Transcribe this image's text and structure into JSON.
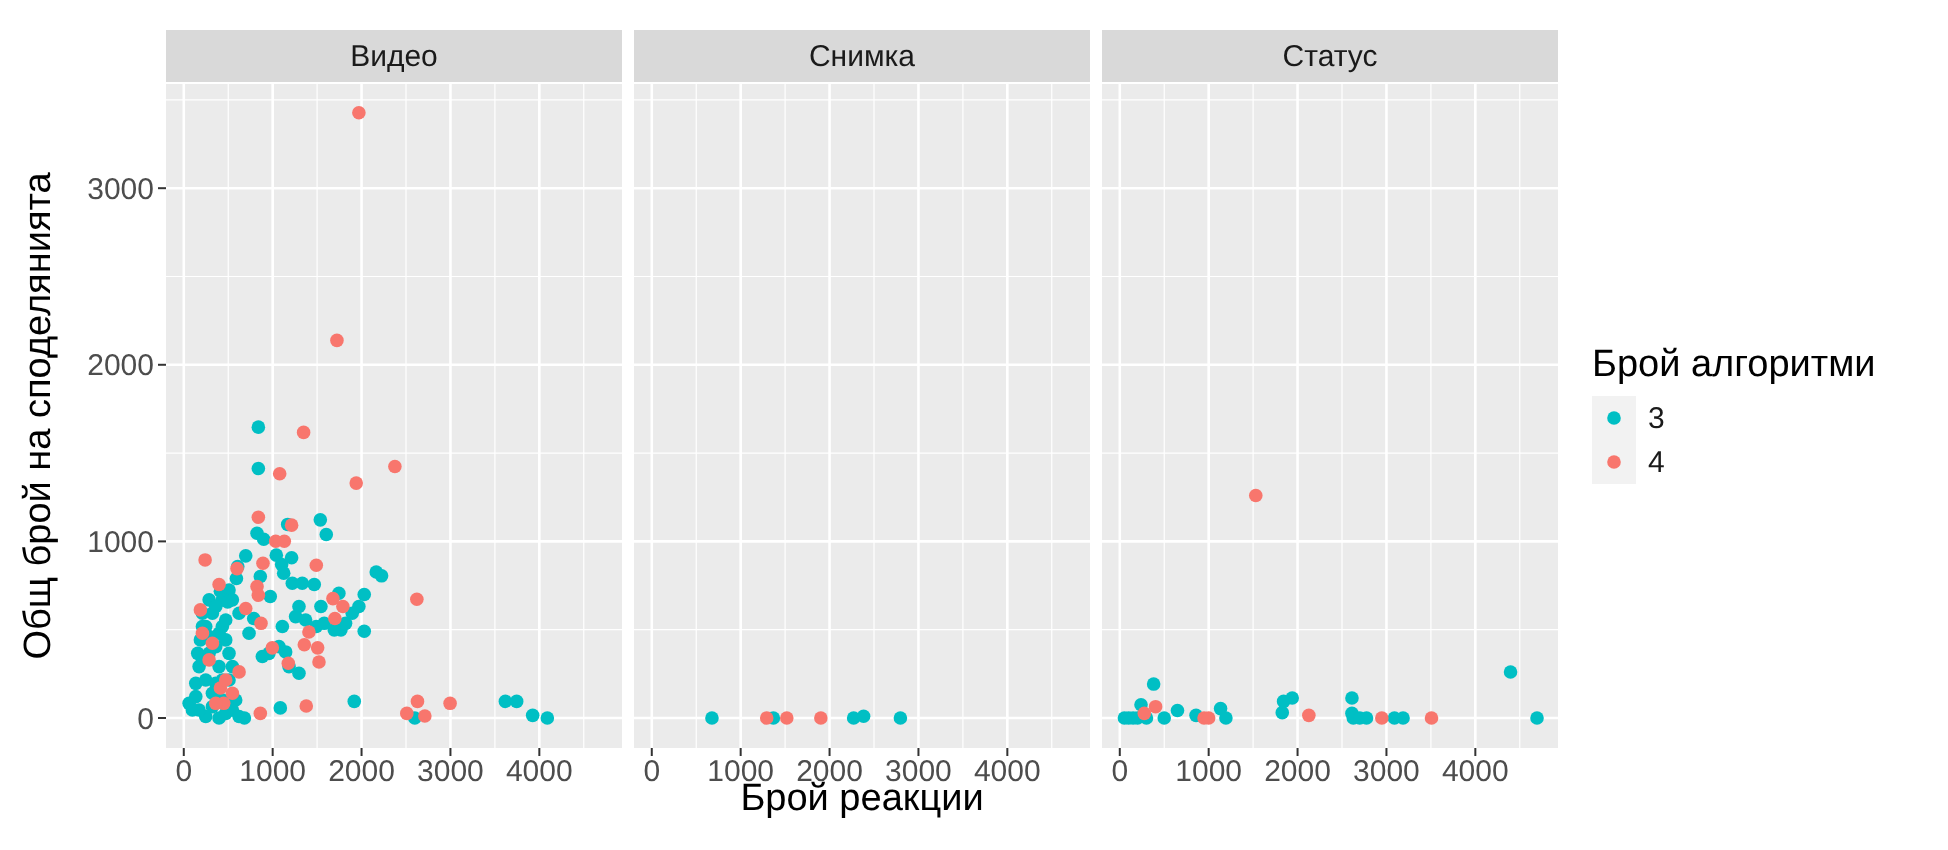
{
  "chart_data": [
    {
      "type": "scatter",
      "title": "Видео",
      "ylabel": "Общ брой на споделянията",
      "xlim": [
        -200,
        4930
      ],
      "xticks": [
        0,
        1000,
        2000,
        3000,
        4000
      ],
      "ylim": [
        -170,
        3590
      ],
      "yticks": [
        0,
        1000,
        2000,
        3000
      ],
      "grid": true,
      "marker": "circle",
      "legend": "right",
      "legend_title": "Брой алгоритми",
      "series": [
        {
          "name": "3",
          "color": "#00bfc4",
          "x": [
            839,
            839,
            1169,
            1536,
            1603,
            824,
            899,
            697,
            607,
            592,
            509,
            412,
            434,
            494,
            1041,
            1101,
            1213,
            1124,
            973,
            861,
            734,
            787,
            2165,
            2225,
            2030,
            1970,
            1895,
            1820,
            1768,
            1693,
            1580,
            1491,
            1371,
            1296,
            1221,
            1333,
            1468,
            1745,
            1543,
            1258,
            1109,
            1071,
            1184,
            1296,
            1146,
            958,
            884,
            2030,
            1918,
            1086,
            2599,
            3618,
            3745,
            3925,
            4090,
            682,
            397,
            60,
            135,
            172,
            157,
            187,
            247,
            322,
            210,
            285,
            360,
            434,
            472,
            509,
            547,
            509,
            584,
            472,
            247,
            97,
            135,
            247,
            322,
            397,
            285,
            360,
            210,
            434,
            547,
            622,
            172,
            322,
            210,
            397,
            472,
            547,
            622,
            285,
            434,
            360
          ],
          "values": [
            1647,
            1413,
            1096,
            1122,
            1039,
            1046,
            1012,
            918,
            858,
            790,
            725,
            718,
            669,
            657,
            922,
            869,
            907,
            820,
            688,
            801,
            480,
            563,
            827,
            805,
            699,
            631,
            593,
            536,
            499,
            499,
            536,
            518,
            555,
            631,
            763,
            763,
            756,
            706,
            631,
            574,
            518,
            404,
            291,
            253,
            374,
            366,
            348,
            491,
            94,
            57,
            0,
            94,
            94,
            15,
            0,
            0,
            0,
            83,
            196,
            291,
            366,
            442,
            518,
            593,
            593,
            669,
            631,
            518,
            442,
            366,
            291,
            215,
            102,
            26,
            8,
            45,
            121,
            215,
            140,
            291,
            366,
            404,
            329,
            102,
            45,
            8,
            45,
            64,
            518,
            480,
            555,
            669,
            593,
            461,
            215,
            196
          ]
        },
        {
          "name": "4",
          "color": "#f8766d",
          "x": [
            1970,
            1723,
            1348,
            1079,
            2375,
            1940,
            839,
            240,
            2622,
            2629,
            2509,
            2712,
            2996,
            861,
            1378,
            1034,
            1131,
            1213,
            891,
            1491,
            824,
            839,
            697,
            599,
            397,
            187,
            869,
            1678,
            1790,
            1700,
            1408,
            1506,
            1521,
            996,
            1356,
            1176,
            449,
            412,
            622,
            322,
            472,
            210,
            285,
            547,
            360
          ],
          "values": [
            3427,
            2138,
            1617,
            1383,
            1424,
            1330,
            1137,
            895,
            672,
            94,
            26,
            11,
            83,
            26,
            68,
            1001,
            1001,
            1092,
            876,
            865,
            744,
            695,
            620,
            846,
            756,
            612,
            536,
            676,
            631,
            563,
            487,
            397,
            317,
            397,
            415,
            310,
            83,
            170,
            261,
            423,
            215,
            480,
            329,
            140,
            83
          ]
        }
      ]
    },
    {
      "type": "scatter",
      "title": "Снимка",
      "xlabel": "Брой реакции",
      "xlim": [
        -200,
        4930
      ],
      "xticks": [
        0,
        1000,
        2000,
        3000,
        4000
      ],
      "ylim": [
        -170,
        3590
      ],
      "yticks": [
        0,
        1000,
        2000,
        3000
      ],
      "tick_labels": "x",
      "grid": true,
      "marker": "circle",
      "series": [
        {
          "name": "3",
          "color": "#00bfc4",
          "x": [
            677,
            1368,
            2271,
            2383,
            2797
          ],
          "values": [
            0,
            0,
            0,
            10,
            0
          ]
        },
        {
          "name": "4",
          "color": "#f8766d",
          "x": [
            1293,
            1519,
            1902
          ],
          "values": [
            0,
            0,
            0
          ]
        }
      ]
    },
    {
      "type": "scatter",
      "title": "Статус",
      "xlim": [
        -200,
        4930
      ],
      "xticks": [
        0,
        1000,
        2000,
        3000,
        4000
      ],
      "ylim": [
        -170,
        3590
      ],
      "yticks": [
        0,
        1000,
        2000,
        3000
      ],
      "tick_labels": "x",
      "grid": true,
      "marker": "circle",
      "series": [
        {
          "name": "3",
          "color": "#00bfc4",
          "x": [
            4396,
            4694,
            381,
            52,
            100,
            150,
            200,
            300,
            500,
            239,
            649,
            858,
            1134,
            1194,
            1828,
            1843,
            1940,
            2612,
            2612,
            2627,
            2700,
            2776,
            3090,
            3187
          ],
          "values": [
            260,
            0,
            192,
            0,
            0,
            0,
            0,
            0,
            0,
            75,
            42,
            15,
            53,
            0,
            30,
            94,
            113,
            113,
            26,
            0,
            0,
            0,
            0,
            0
          ]
        },
        {
          "name": "4",
          "color": "#f8766d",
          "x": [
            1530,
            403,
            276,
            948,
            1000,
            2127,
            2948,
            3507
          ],
          "values": [
            1260,
            64,
            26,
            0,
            0,
            15,
            0,
            0
          ]
        }
      ]
    }
  ]
}
